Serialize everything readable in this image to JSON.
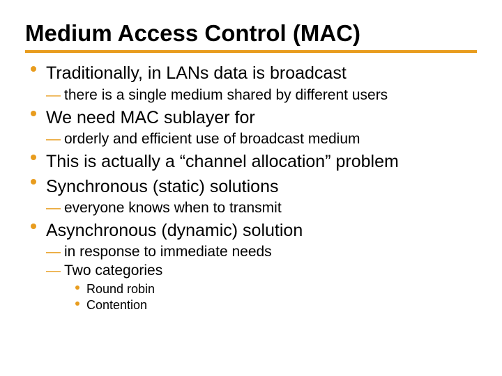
{
  "colors": {
    "accent": "#e89c1e",
    "text": "#000000",
    "background": "#ffffff"
  },
  "title": "Medium Access Control (MAC)",
  "bullets": [
    {
      "text": "Traditionally, in LANs data is broadcast",
      "sub": [
        {
          "text": "there is a single medium shared by different users"
        }
      ]
    },
    {
      "text": "We need MAC sublayer for",
      "sub": [
        {
          "text": "orderly and efficient use of broadcast medium"
        }
      ]
    },
    {
      "text": "This is actually a “channel allocation” problem"
    },
    {
      "text": "Synchronous (static) solutions",
      "sub": [
        {
          "text": "everyone knows when to transmit"
        }
      ]
    },
    {
      "text": "Asynchronous (dynamic) solution",
      "sub": [
        {
          "text": "in response to immediate needs"
        },
        {
          "text": "Two categories",
          "sub": [
            {
              "text": "Round robin"
            },
            {
              "text": "Contention"
            }
          ]
        }
      ]
    }
  ]
}
